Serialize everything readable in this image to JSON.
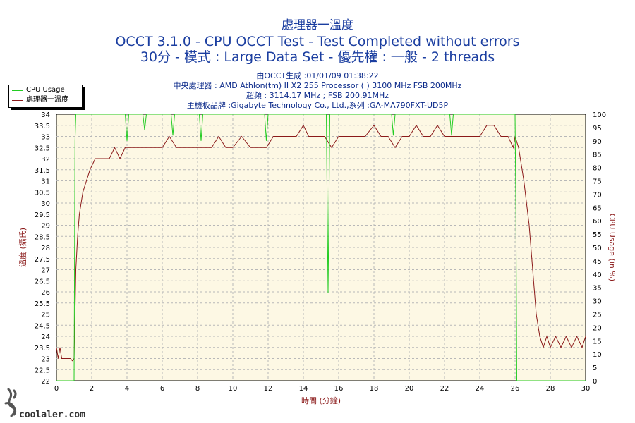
{
  "header": {
    "title": "處理器一溫度",
    "subtitle": "OCCT 3.1.0 - CPU OCCT Test - Test Completed without errors",
    "mode_line": "30分 - 模式 : Large Data Set - 優先權 : 一般 - 2 threads"
  },
  "info": {
    "generated": "由OCCT生成 :01/01/09 01:38:22",
    "cpu": "中央處理器 : AMD Athlon(tm) II X2 255 Processor (  ) 3100 MHz FSB 200MHz",
    "overclock": "超頻 : 3114.17 MHz ; FSB 200.91MHz",
    "motherboard": "主機板品牌 :Gigabyte Technology Co., Ltd.,系列 :GA-MA790FXT-UD5P"
  },
  "legend": [
    {
      "label": "CPU Usage",
      "color": "#22cc22"
    },
    {
      "label": "處理器一溫度",
      "color": "#8b1a1a"
    }
  ],
  "watermark": {
    "text": "coolaler.com",
    "logo_icon": "calligraphy-seal-icon"
  },
  "chart_data": {
    "type": "line",
    "xlabel": "時間 (分鐘)",
    "ylabel_left": "溫度 (攝氏)",
    "ylabel_right": "CPU Usage (in %)",
    "xlim": [
      0,
      30
    ],
    "ylim_left": [
      22,
      34
    ],
    "ylim_right": [
      0,
      100
    ],
    "x_ticks": [
      "0",
      "2",
      "4",
      "6",
      "8",
      "10",
      "12",
      "14",
      "16",
      "18",
      "20",
      "22",
      "24",
      "26",
      "28",
      "30"
    ],
    "y_left_ticks": [
      "22",
      "22.5",
      "23",
      "23.5",
      "24",
      "24.5",
      "25",
      "25.5",
      "26",
      "26.5",
      "27",
      "27.5",
      "28",
      "28.5",
      "29",
      "29.5",
      "30",
      "30.5",
      "31",
      "31.5",
      "32",
      "32.5",
      "33",
      "33.5",
      "34"
    ],
    "y_right_ticks": [
      "0",
      "5",
      "10",
      "15",
      "20",
      "25",
      "30",
      "35",
      "40",
      "45",
      "50",
      "55",
      "60",
      "65",
      "70",
      "75",
      "80",
      "85",
      "90",
      "95",
      "100"
    ],
    "grid": true,
    "legend_position": "top-left",
    "background_color": "#fdf8e4",
    "series": [
      {
        "name": "處理器一溫度",
        "axis": "left",
        "color": "#8b1a1a",
        "x": [
          0,
          0.1,
          0.2,
          0.3,
          0.4,
          0.5,
          0.6,
          0.7,
          0.8,
          0.9,
          1.0,
          1.05,
          1.1,
          1.2,
          1.3,
          1.5,
          1.7,
          1.9,
          2.2,
          2.5,
          2.8,
          3.0,
          3.3,
          3.6,
          3.9,
          4.2,
          4.5,
          5.0,
          5.5,
          6.0,
          6.4,
          6.8,
          7.2,
          7.6,
          8.0,
          8.4,
          8.8,
          9.2,
          9.6,
          10.0,
          10.5,
          11.0,
          11.5,
          11.9,
          12.3,
          12.8,
          13.2,
          13.6,
          14.0,
          14.3,
          14.7,
          15.2,
          15.6,
          16.0,
          16.5,
          17.0,
          17.5,
          18.0,
          18.4,
          18.8,
          19.2,
          19.6,
          20.0,
          20.4,
          20.8,
          21.2,
          21.6,
          22.0,
          22.5,
          23.0,
          23.5,
          24.0,
          24.4,
          24.8,
          25.2,
          25.6,
          25.9,
          26.0,
          26.2,
          26.5,
          26.8,
          27.0,
          27.2,
          27.4,
          27.6,
          27.8,
          28.0,
          28.3,
          28.6,
          28.9,
          29.2,
          29.5,
          29.8,
          30.0
        ],
        "values": [
          23.5,
          23.0,
          23.5,
          23.0,
          23.0,
          23.0,
          23.0,
          23.0,
          23.0,
          22.9,
          23.0,
          25.0,
          27.0,
          28.5,
          29.5,
          30.5,
          31.0,
          31.5,
          32.0,
          32.0,
          32.0,
          32.0,
          32.5,
          32.0,
          32.5,
          32.5,
          32.5,
          32.5,
          32.5,
          32.5,
          33.0,
          32.5,
          32.5,
          32.5,
          32.5,
          32.5,
          32.5,
          33.0,
          32.5,
          32.5,
          33.0,
          32.5,
          32.5,
          32.5,
          33.0,
          33.0,
          33.0,
          33.0,
          33.5,
          33.0,
          33.0,
          33.0,
          32.5,
          33.0,
          33.0,
          33.0,
          33.0,
          33.5,
          33.0,
          33.0,
          32.5,
          33.0,
          33.0,
          33.5,
          33.0,
          33.0,
          33.5,
          33.0,
          33.0,
          33.0,
          33.0,
          33.0,
          33.5,
          33.5,
          33.0,
          33.0,
          32.5,
          33.0,
          32.5,
          31.0,
          29.0,
          27.0,
          25.0,
          24.0,
          23.5,
          24.0,
          23.5,
          24.0,
          23.5,
          24.0,
          23.5,
          24.0,
          23.5,
          24.0
        ]
      },
      {
        "name": "CPU Usage",
        "axis": "right",
        "color": "#22cc22",
        "x": [
          0,
          0.9,
          0.95,
          1.0,
          1.05,
          1.1,
          1.15,
          1.2,
          1.5,
          1.9,
          2.0,
          2.3,
          2.6,
          2.9,
          3.1,
          3.5,
          3.9,
          4.0,
          4.1,
          4.3,
          4.6,
          4.9,
          5.0,
          5.1,
          5.4,
          5.8,
          6.2,
          6.5,
          6.6,
          6.7,
          7.0,
          7.4,
          7.8,
          8.1,
          8.2,
          8.3,
          8.6,
          9.0,
          9.4,
          9.8,
          10.2,
          10.6,
          11.0,
          11.4,
          11.8,
          11.9,
          12.0,
          12.2,
          12.6,
          13.0,
          13.4,
          13.8,
          14.2,
          14.6,
          15.0,
          15.3,
          15.4,
          15.5,
          15.6,
          15.9,
          16.3,
          16.7,
          17.1,
          17.5,
          17.9,
          18.3,
          18.7,
          19.0,
          19.1,
          19.2,
          19.5,
          19.9,
          20.3,
          20.7,
          21.1,
          21.5,
          21.9,
          22.3,
          22.4,
          22.5,
          22.8,
          23.2,
          23.6,
          24.0,
          24.4,
          24.8,
          25.2,
          25.6,
          26.0,
          26.05,
          26.1,
          26.15,
          26.2,
          27.0,
          28.0,
          29.0,
          30.0
        ],
        "values": [
          0,
          0,
          0,
          0,
          90,
          100,
          100,
          100,
          100,
          100,
          100,
          100,
          100,
          100,
          100,
          100,
          100,
          90,
          100,
          100,
          100,
          100,
          94,
          100,
          100,
          100,
          100,
          100,
          92,
          100,
          100,
          100,
          100,
          100,
          90,
          100,
          100,
          100,
          100,
          100,
          100,
          100,
          100,
          100,
          100,
          90,
          100,
          100,
          100,
          100,
          100,
          100,
          100,
          100,
          100,
          100,
          33,
          100,
          100,
          100,
          100,
          100,
          100,
          100,
          100,
          100,
          100,
          100,
          92,
          100,
          100,
          100,
          100,
          100,
          100,
          100,
          100,
          100,
          92,
          100,
          100,
          100,
          100,
          100,
          100,
          100,
          100,
          100,
          100,
          60,
          0,
          0,
          0,
          0,
          0,
          0,
          0
        ]
      }
    ]
  }
}
